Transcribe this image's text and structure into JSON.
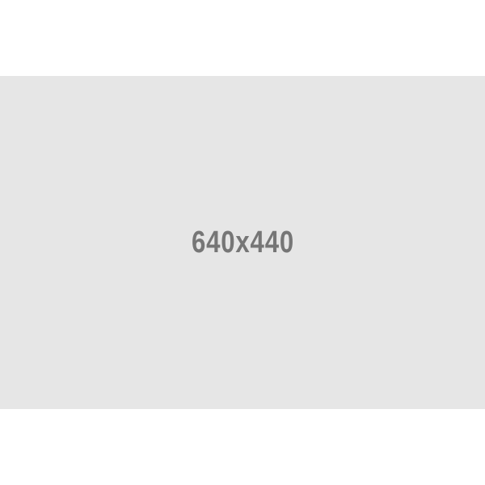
{
  "placeholder": {
    "label": "640x440",
    "background_color": "#e6e6e6",
    "text_color": "#767676"
  },
  "page": {
    "background_color": "#ffffff"
  }
}
